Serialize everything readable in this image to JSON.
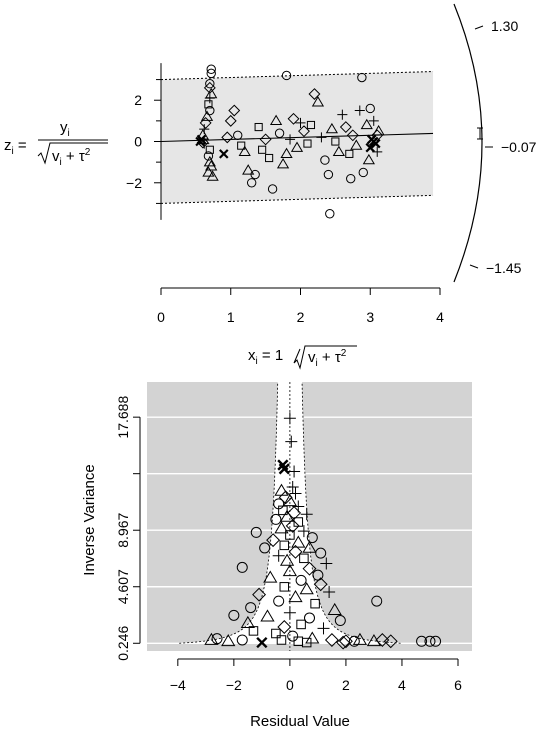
{
  "chart_data": [
    {
      "type": "scatter",
      "subtype": "radial (Galbraith) plot",
      "xlabel": "x_i = 1/√(v_i + τ²)",
      "ylabel": "z_i = y_i / √(v_i + τ²)",
      "xlim": [
        0,
        4
      ],
      "ylim": [
        -3.9,
        3.9
      ],
      "x_ticks": [
        0,
        1,
        2,
        3,
        4
      ],
      "y_ticks": [
        -2,
        0,
        2
      ],
      "band": [
        -3.0,
        3.0
      ],
      "regression_line": {
        "intercept": 0,
        "slope": 0.1
      },
      "arc_labels": [
        "1.30",
        "-0.07",
        "-1.45"
      ],
      "arc_ticks": [
        1.3,
        -0.07,
        -1.45
      ],
      "arc_estimate_ci": [
        -0.22,
        0.08
      ],
      "point_markers": [
        "circle",
        "triangle",
        "square",
        "diamond",
        "plus",
        "cross"
      ],
      "points": [
        [
          0.72,
          3.5,
          "circle"
        ],
        [
          0.72,
          3.3,
          "circle"
        ],
        [
          0.7,
          2.8,
          "circle"
        ],
        [
          0.7,
          2.6,
          "diamond"
        ],
        [
          0.72,
          2.3,
          "triangle"
        ],
        [
          0.7,
          2.1,
          "plus"
        ],
        [
          0.68,
          1.8,
          "square"
        ],
        [
          0.7,
          1.5,
          "circle"
        ],
        [
          0.66,
          1.2,
          "triangle"
        ],
        [
          0.64,
          0.9,
          "diamond"
        ],
        [
          0.62,
          0.6,
          "plus"
        ],
        [
          0.6,
          0.3,
          "triangle"
        ],
        [
          0.58,
          0.1,
          "cross"
        ],
        [
          0.56,
          0.0,
          "cross"
        ],
        [
          0.6,
          -0.05,
          "diamond"
        ],
        [
          0.62,
          -0.1,
          "plus"
        ],
        [
          0.7,
          -0.4,
          "square"
        ],
        [
          0.68,
          -0.7,
          "circle"
        ],
        [
          0.7,
          -1.0,
          "triangle"
        ],
        [
          0.72,
          -1.2,
          "triangle"
        ],
        [
          0.68,
          -1.5,
          "triangle"
        ],
        [
          0.74,
          -1.7,
          "triangle"
        ],
        [
          0.9,
          -0.6,
          "cross"
        ],
        [
          0.95,
          0.2,
          "diamond"
        ],
        [
          1.0,
          1.0,
          "diamond"
        ],
        [
          1.05,
          1.5,
          "diamond"
        ],
        [
          1.1,
          0.3,
          "circle"
        ],
        [
          1.15,
          -0.2,
          "square"
        ],
        [
          1.2,
          -0.5,
          "triangle"
        ],
        [
          1.25,
          -1.4,
          "triangle"
        ],
        [
          1.3,
          -2.0,
          "circle"
        ],
        [
          1.35,
          -1.6,
          "circle"
        ],
        [
          1.4,
          0.7,
          "square"
        ],
        [
          1.45,
          -0.4,
          "square"
        ],
        [
          1.5,
          0.1,
          "diamond"
        ],
        [
          1.55,
          -0.8,
          "square"
        ],
        [
          1.6,
          -2.3,
          "circle"
        ],
        [
          1.65,
          1.0,
          "triangle"
        ],
        [
          1.7,
          0.4,
          "circle"
        ],
        [
          1.75,
          -1.1,
          "triangle"
        ],
        [
          1.8,
          -0.6,
          "triangle"
        ],
        [
          1.8,
          3.2,
          "circle"
        ],
        [
          1.85,
          0.1,
          "plus"
        ],
        [
          1.9,
          1.1,
          "diamond"
        ],
        [
          1.95,
          -0.3,
          "triangle"
        ],
        [
          2.0,
          0.9,
          "plus"
        ],
        [
          2.05,
          0.5,
          "diamond"
        ],
        [
          2.1,
          -0.1,
          "square"
        ],
        [
          2.15,
          0.8,
          "square"
        ],
        [
          2.2,
          2.3,
          "diamond"
        ],
        [
          2.25,
          1.9,
          "triangle"
        ],
        [
          2.3,
          0.2,
          "plus"
        ],
        [
          2.35,
          -0.9,
          "circle"
        ],
        [
          2.4,
          -1.6,
          "circle"
        ],
        [
          2.42,
          -3.5,
          "circle"
        ],
        [
          2.45,
          0.6,
          "triangle"
        ],
        [
          2.5,
          0.0,
          "square"
        ],
        [
          2.55,
          -0.5,
          "triangle"
        ],
        [
          2.6,
          1.3,
          "plus"
        ],
        [
          2.65,
          0.7,
          "diamond"
        ],
        [
          2.7,
          -0.6,
          "square"
        ],
        [
          2.72,
          -1.8,
          "circle"
        ],
        [
          2.75,
          0.3,
          "diamond"
        ],
        [
          2.8,
          -0.2,
          "triangle"
        ],
        [
          2.85,
          1.5,
          "plus"
        ],
        [
          2.9,
          -1.5,
          "circle"
        ],
        [
          2.88,
          3.1,
          "circle"
        ],
        [
          2.95,
          0.8,
          "triangle"
        ],
        [
          3.0,
          -0.3,
          "cross"
        ],
        [
          3.02,
          0.1,
          "cross"
        ],
        [
          3.05,
          0.0,
          "cross"
        ],
        [
          3.08,
          -0.1,
          "cross"
        ],
        [
          3.1,
          0.3,
          "diamond"
        ],
        [
          3.0,
          1.6,
          "circle"
        ],
        [
          2.98,
          -0.9,
          "triangle"
        ],
        [
          3.05,
          1.0,
          "plus"
        ],
        [
          3.1,
          -0.5,
          "plus"
        ],
        [
          3.12,
          0.5,
          "triangle"
        ]
      ]
    },
    {
      "type": "scatter",
      "subtype": "funnel plot",
      "xlabel": "Residual Value",
      "ylabel": "Inverse Variance",
      "xlim": [
        -5.1,
        6.5
      ],
      "ylim": [
        -0.35,
        20.4
      ],
      "x_ticks": [
        -4,
        -2,
        0,
        2,
        4,
        6
      ],
      "y_tick_labels": [
        "0.246",
        "4.607",
        "8.967",
        "17.688"
      ],
      "y_tick_values": [
        0.246,
        4.607,
        8.967,
        17.688
      ],
      "y_minor_ticks": [
        13.328
      ],
      "grid": true,
      "background": "#d3d3d3",
      "point_markers": [
        "circle",
        "triangle",
        "square",
        "diamond",
        "plus",
        "cross"
      ],
      "points": [
        [
          0.0,
          17.6,
          "plus"
        ],
        [
          0.05,
          15.8,
          "plus"
        ],
        [
          -0.25,
          14.0,
          "cross"
        ],
        [
          -0.2,
          13.7,
          "cross"
        ],
        [
          0.15,
          13.5,
          "plus"
        ],
        [
          0.1,
          12.3,
          "plus"
        ],
        [
          -0.3,
          12.0,
          "triangle"
        ],
        [
          0.2,
          11.8,
          "plus"
        ],
        [
          -0.15,
          11.5,
          "diamond"
        ],
        [
          0.0,
          11.2,
          "triangle"
        ],
        [
          -0.4,
          11.0,
          "circle"
        ],
        [
          0.3,
          10.8,
          "plus"
        ],
        [
          -0.25,
          10.5,
          "square"
        ],
        [
          0.15,
          10.3,
          "diamond"
        ],
        [
          0.6,
          10.2,
          "plus"
        ],
        [
          -0.1,
          10.0,
          "triangle"
        ],
        [
          -0.5,
          9.8,
          "circle"
        ],
        [
          0.3,
          9.6,
          "square"
        ],
        [
          0.1,
          9.3,
          "diamond"
        ],
        [
          -0.3,
          9.1,
          "triangle"
        ],
        [
          0.5,
          8.9,
          "plus"
        ],
        [
          0.0,
          8.6,
          "square"
        ],
        [
          -1.2,
          8.8,
          "circle"
        ],
        [
          0.8,
          8.4,
          "circle"
        ],
        [
          -0.6,
          8.2,
          "diamond"
        ],
        [
          0.3,
          8.0,
          "triangle"
        ],
        [
          -0.2,
          7.8,
          "square"
        ],
        [
          0.7,
          7.6,
          "triangle"
        ],
        [
          -0.9,
          7.6,
          "circle"
        ],
        [
          0.2,
          7.3,
          "diamond"
        ],
        [
          1.1,
          7.2,
          "circle"
        ],
        [
          -0.4,
          7.0,
          "plus"
        ],
        [
          0.5,
          6.8,
          "square"
        ],
        [
          -0.1,
          6.6,
          "triangle"
        ],
        [
          1.3,
          6.4,
          "plus"
        ],
        [
          -1.7,
          6.1,
          "circle"
        ],
        [
          0.7,
          6.0,
          "diamond"
        ],
        [
          0.0,
          5.8,
          "triangle"
        ],
        [
          1.0,
          5.5,
          "circle"
        ],
        [
          -0.7,
          5.3,
          "triangle"
        ],
        [
          0.4,
          5.1,
          "circle"
        ],
        [
          1.1,
          4.8,
          "diamond"
        ],
        [
          -0.2,
          4.6,
          "square"
        ],
        [
          0.6,
          4.4,
          "triangle"
        ],
        [
          1.4,
          4.2,
          "plus"
        ],
        [
          -1.1,
          4.0,
          "diamond"
        ],
        [
          0.2,
          3.8,
          "triangle"
        ],
        [
          -0.4,
          3.5,
          "circle"
        ],
        [
          0.9,
          3.3,
          "square"
        ],
        [
          3.1,
          3.5,
          "circle"
        ],
        [
          -1.4,
          3.0,
          "circle"
        ],
        [
          1.6,
          2.8,
          "triangle"
        ],
        [
          0.0,
          2.6,
          "plus"
        ],
        [
          -2.0,
          2.4,
          "circle"
        ],
        [
          -0.8,
          2.3,
          "triangle"
        ],
        [
          0.7,
          2.2,
          "circle"
        ],
        [
          1.8,
          2.0,
          "circle"
        ],
        [
          -1.5,
          1.8,
          "triangle"
        ],
        [
          0.4,
          1.7,
          "square"
        ],
        [
          -0.2,
          1.5,
          "diamond"
        ],
        [
          1.2,
          1.4,
          "plus"
        ],
        [
          -2.6,
          0.6,
          "circle"
        ],
        [
          -2.8,
          0.5,
          "triangle"
        ],
        [
          -2.2,
          0.4,
          "triangle"
        ],
        [
          -1.7,
          0.5,
          "circle"
        ],
        [
          -1.0,
          0.3,
          "cross"
        ],
        [
          -0.3,
          0.5,
          "square"
        ],
        [
          0.3,
          0.4,
          "square"
        ],
        [
          0.8,
          0.6,
          "triangle"
        ],
        [
          1.5,
          0.5,
          "diamond"
        ],
        [
          2.0,
          0.4,
          "diamond"
        ],
        [
          2.5,
          0.5,
          "triangle"
        ],
        [
          3.0,
          0.4,
          "triangle"
        ],
        [
          3.3,
          0.5,
          "diamond"
        ],
        [
          3.6,
          0.4,
          "diamond"
        ],
        [
          4.7,
          0.4,
          "circle"
        ],
        [
          5.0,
          0.4,
          "circle"
        ],
        [
          5.2,
          0.4,
          "circle"
        ],
        [
          -0.5,
          1.0,
          "square"
        ],
        [
          0.1,
          0.8,
          "circle"
        ],
        [
          1.9,
          0.3,
          "diamond"
        ],
        [
          -1.3,
          1.2,
          "square"
        ],
        [
          2.3,
          0.4,
          "circle"
        ],
        [
          0.6,
          0.3,
          "square"
        ]
      ]
    }
  ]
}
